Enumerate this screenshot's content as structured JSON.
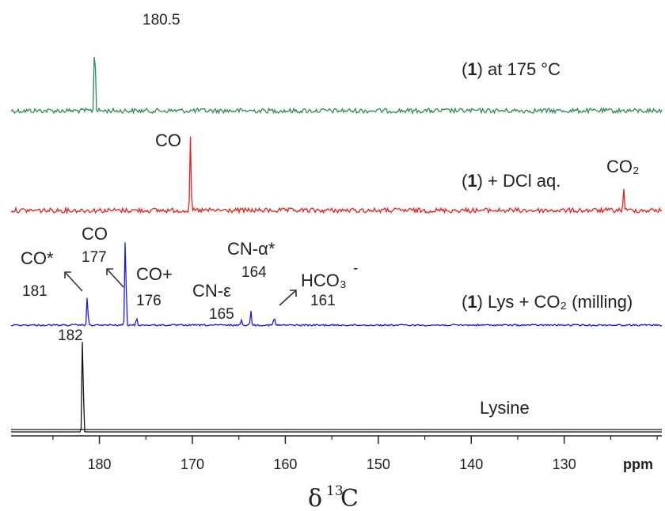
{
  "chart_data": {
    "type": "line",
    "xlabel_symbol": "δ",
    "xlabel_sup": "13",
    "xlabel_main": "C",
    "x_unit": "ppm",
    "xlim": [
      189.5,
      119.5
    ],
    "x_ticks": [
      180,
      170,
      160,
      150,
      140,
      130
    ],
    "series": [
      {
        "name_bold": "1",
        "name_rest": ") at 175 °C",
        "color": "#2e8b57",
        "peaks": [
          {
            "x": 180.5,
            "height": 1.0
          }
        ],
        "annotations": [
          {
            "text": "180.5"
          }
        ]
      },
      {
        "name_bold": "1",
        "name_rest": ") + DCl aq.",
        "color": "#e02020",
        "peaks": [
          {
            "x": 170.2,
            "height": 1.0
          },
          {
            "x": 123.6,
            "height": 0.32
          }
        ],
        "annotations": [
          {
            "text": "CO"
          },
          {
            "text": "CO₂"
          }
        ]
      },
      {
        "name_bold": "1",
        "name_rest": ") Lys + CO₂ (milling)",
        "color": "#1a1ae0",
        "peaks": [
          {
            "x": 181.3,
            "height": 0.3
          },
          {
            "x": 177.2,
            "height": 1.0
          },
          {
            "x": 176.0,
            "height": 0.08
          },
          {
            "x": 164.7,
            "height": 0.06
          },
          {
            "x": 163.7,
            "height": 0.15
          },
          {
            "x": 161.2,
            "height": 0.09
          }
        ],
        "annotations": [
          {
            "text": "CO*"
          },
          {
            "text": "181"
          },
          {
            "text": "CO"
          },
          {
            "text": "177"
          },
          {
            "text": "CO+"
          },
          {
            "text": "176"
          },
          {
            "text": "CN-ε"
          },
          {
            "text": "165"
          },
          {
            "text": "CN-α*"
          },
          {
            "text": "164"
          },
          {
            "text": "HCO₃"
          },
          {
            "text": "-"
          },
          {
            "text": "161"
          }
        ]
      },
      {
        "name": "Lysine",
        "color": "#111111",
        "peaks": [
          {
            "x": 181.8,
            "height": 1.0
          }
        ],
        "annotations": [
          {
            "text": "182"
          }
        ]
      }
    ]
  }
}
